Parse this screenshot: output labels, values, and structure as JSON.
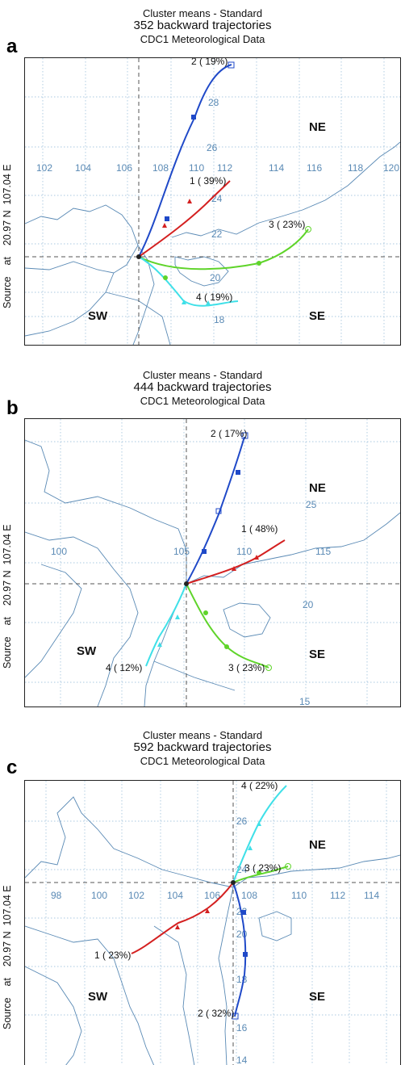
{
  "panels": [
    {
      "letter": "a",
      "title1": "Cluster means - Standard",
      "title2": "352 backward trajectories",
      "title3": "CDC1 Meteorological Data",
      "source_label": "Source    at    20.97 N  107.04 E",
      "region_labels": {
        "ne": "NE",
        "se": "SE",
        "sw": "SW"
      },
      "lon_ticks": [
        "102",
        "104",
        "106",
        "108",
        "110",
        "112",
        "114",
        "116",
        "118",
        "120"
      ],
      "lat_ticks": [
        "28",
        "26",
        "24",
        "22",
        "20",
        "18"
      ],
      "clusters": [
        {
          "label": "1 ( 39%)",
          "color": "#d42020"
        },
        {
          "label": "2 ( 19%)",
          "color": "#1f49c8"
        },
        {
          "label": "3 ( 23%)",
          "color": "#5fd42a"
        },
        {
          "label": "4 ( 19%)",
          "color": "#3fe0e8"
        }
      ]
    },
    {
      "letter": "b",
      "title1": "Cluster means - Standard",
      "title2": "444 backward trajectories",
      "title3": "CDC1 Meteorological Data",
      "source_label": "Source    at    20.97 N  107.04 E",
      "region_labels": {
        "ne": "NE",
        "se": "SE",
        "sw": "SW"
      },
      "lon_ticks": [
        "100",
        "105",
        "110",
        "115"
      ],
      "lat_ticks": [
        "25",
        "20",
        "15"
      ],
      "clusters": [
        {
          "label": "1 ( 48%)",
          "color": "#d42020"
        },
        {
          "label": "2 ( 17%)",
          "color": "#1f49c8"
        },
        {
          "label": "3 ( 23%)",
          "color": "#5fd42a"
        },
        {
          "label": "4 ( 12%)",
          "color": "#3fe0e8"
        }
      ]
    },
    {
      "letter": "c",
      "title1": "Cluster means - Standard",
      "title2": "592 backward trajectories",
      "title3": "CDC1 Meteorological Data",
      "source_label": "Source    at    20.97 N  107.04 E",
      "region_labels": {
        "ne": "NE",
        "se": "SE",
        "sw": "SW"
      },
      "lon_ticks": [
        "98",
        "100",
        "102",
        "104",
        "106",
        "108",
        "110",
        "112",
        "114"
      ],
      "lat_ticks": [
        "26",
        "24",
        "22",
        "20",
        "18",
        "16",
        "14"
      ],
      "clusters": [
        {
          "label": "1 ( 23%)",
          "color": "#d42020"
        },
        {
          "label": "2 ( 32%)",
          "color": "#1f49c8"
        },
        {
          "label": "3 ( 23%)",
          "color": "#5fd42a"
        },
        {
          "label": "4 ( 22%)",
          "color": "#3fe0e8"
        }
      ]
    }
  ]
}
